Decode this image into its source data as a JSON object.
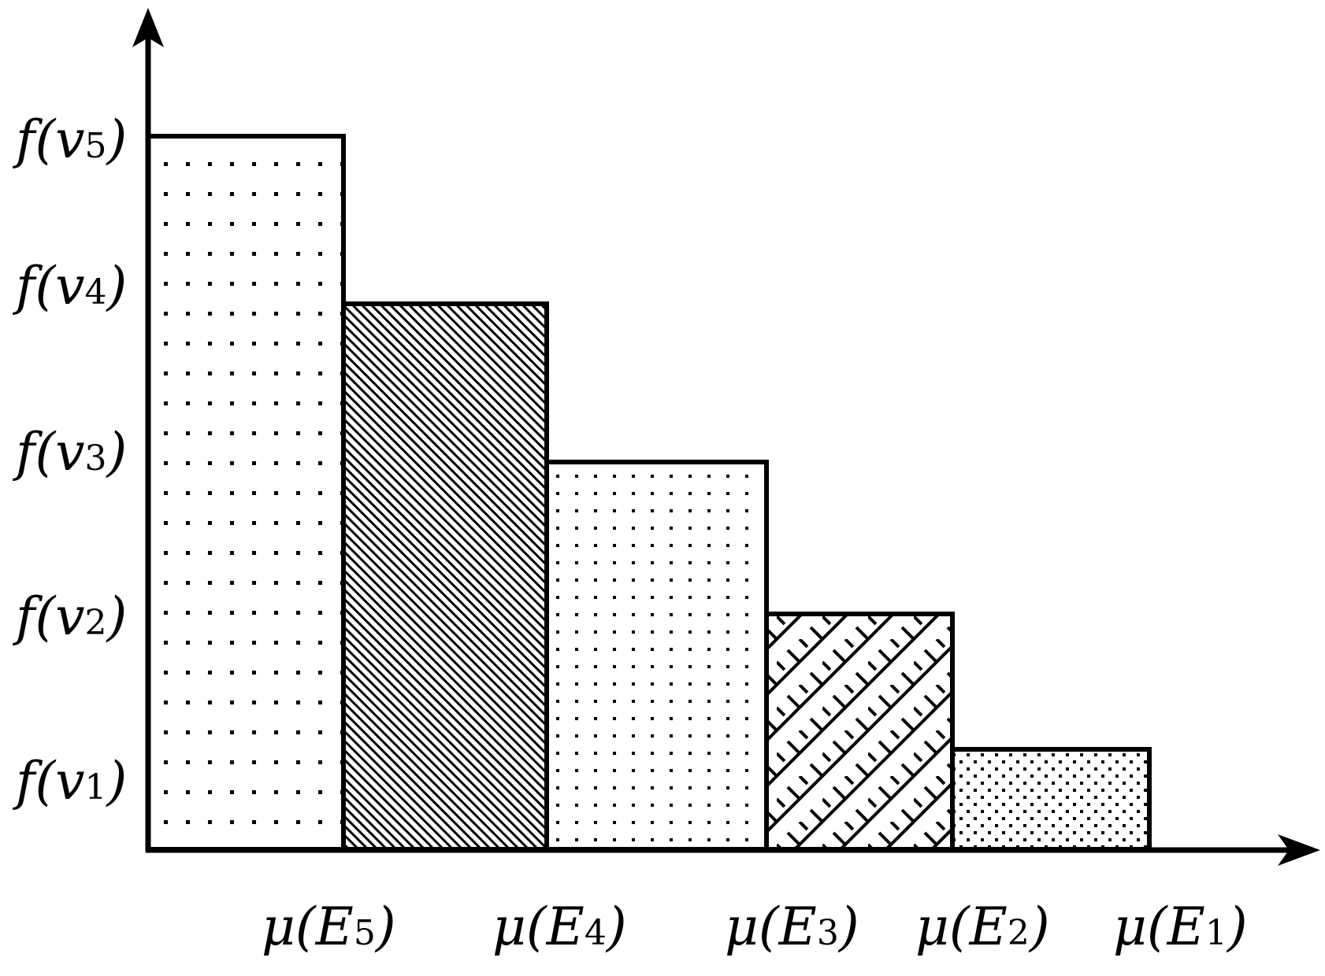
{
  "diagram": {
    "y_labels": [
      {
        "fn": "f",
        "var": "v",
        "sub": "5"
      },
      {
        "fn": "f",
        "var": "v",
        "sub": "4"
      },
      {
        "fn": "f",
        "var": "v",
        "sub": "3"
      },
      {
        "fn": "f",
        "var": "v",
        "sub": "2"
      },
      {
        "fn": "f",
        "var": "v",
        "sub": "1"
      }
    ],
    "x_labels": [
      {
        "fn": "μ",
        "var": "E",
        "sub": "5"
      },
      {
        "fn": "μ",
        "var": "E",
        "sub": "4"
      },
      {
        "fn": "μ",
        "var": "E",
        "sub": "3"
      },
      {
        "fn": "μ",
        "var": "E",
        "sub": "2"
      },
      {
        "fn": "μ",
        "var": "E",
        "sub": "1"
      }
    ],
    "bars": [
      {
        "level": 5,
        "pattern": "sparse-dots"
      },
      {
        "level": 4,
        "pattern": "diagonal-hatch"
      },
      {
        "level": 3,
        "pattern": "dots"
      },
      {
        "level": 2,
        "pattern": "brick-diagonal"
      },
      {
        "level": 1,
        "pattern": "dense-dots"
      }
    ],
    "colors": {
      "ink": "#000000",
      "paper": "#ffffff"
    }
  }
}
